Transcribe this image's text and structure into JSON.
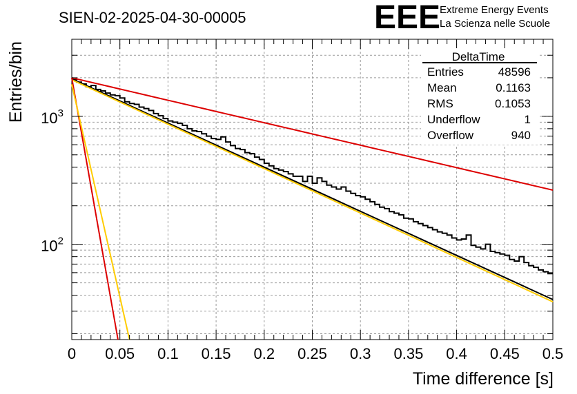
{
  "header": {
    "run_title": "SIEN-02-2025-04-30-00005",
    "logo_text": "EEE",
    "logo_line1": "Extreme Energy Events",
    "logo_line2": "La Scienza nelle Scuole",
    "logo_color": "#1a1aff"
  },
  "stats": {
    "title": "DeltaTime",
    "rows": [
      {
        "label": "Entries",
        "value": "48596"
      },
      {
        "label": "Mean",
        "value": "0.1163"
      },
      {
        "label": "RMS",
        "value": "0.1053"
      },
      {
        "label": "Underflow",
        "value": "1"
      },
      {
        "label": "Overflow",
        "value": "940"
      }
    ]
  },
  "chart_data": {
    "type": "line",
    "title": "SIEN-02-2025-04-30-00005",
    "xlabel": "Time difference [s]",
    "ylabel": "Entries/bin",
    "xlim": [
      0,
      0.5
    ],
    "ylim": [
      18,
      4000
    ],
    "yscale": "log",
    "grid": true,
    "x_ticks": [
      0,
      0.05,
      0.1,
      0.15,
      0.2,
      0.25,
      0.3,
      0.35,
      0.4,
      0.45,
      0.5
    ],
    "x_tick_labels": [
      "0",
      "0.05",
      "0.1",
      "0.15",
      "0.2",
      "0.25",
      "0.3",
      "0.35",
      "0.4",
      "0.45",
      "0.5"
    ],
    "y_major_ticks": [
      100,
      1000
    ],
    "y_tick_labels": [
      {
        "base": "10",
        "exp": "2"
      },
      {
        "base": "10",
        "exp": "3"
      }
    ],
    "histogram": {
      "name": "DeltaTime",
      "color": "#000000",
      "bin_width": 0.005,
      "x_start": 0,
      "values": [
        1925,
        1850,
        1790,
        1700,
        1740,
        1620,
        1580,
        1520,
        1470,
        1450,
        1390,
        1300,
        1260,
        1240,
        1180,
        1150,
        1110,
        1050,
        1010,
        960,
        920,
        900,
        880,
        850,
        800,
        770,
        760,
        730,
        700,
        670,
        660,
        690,
        630,
        590,
        560,
        550,
        520,
        510,
        480,
        460,
        430,
        410,
        390,
        380,
        370,
        355,
        340,
        340,
        310,
        340,
        300,
        330,
        310,
        290,
        280,
        270,
        280,
        260,
        250,
        240,
        235,
        225,
        215,
        205,
        195,
        190,
        180,
        175,
        170,
        160,
        158,
        150,
        145,
        140,
        135,
        130,
        125,
        122,
        118,
        112,
        108,
        110,
        118,
        98,
        95,
        92,
        100,
        88,
        86,
        84,
        82,
        76,
        74,
        80,
        72,
        68,
        66,
        63,
        61,
        59
      ]
    },
    "series": [
      {
        "name": "black fit",
        "color": "#000000",
        "x": [
          0,
          0.5
        ],
        "y": [
          1960,
          37
        ]
      },
      {
        "name": "orange fit",
        "color": "#ffcc00",
        "x": [
          0,
          0.5
        ],
        "y": [
          1930,
          35.5
        ]
      },
      {
        "name": "red slow",
        "color": "#dd0000",
        "x": [
          0,
          0.5
        ],
        "y": [
          2000,
          265
        ]
      },
      {
        "name": "red fast",
        "color": "#dd0000",
        "x": [
          0,
          0.048
        ],
        "y": [
          2000,
          18
        ]
      },
      {
        "name": "orange fast",
        "color": "#ffcc00",
        "x": [
          0,
          0.06
        ],
        "y": [
          1780,
          18
        ]
      }
    ]
  }
}
